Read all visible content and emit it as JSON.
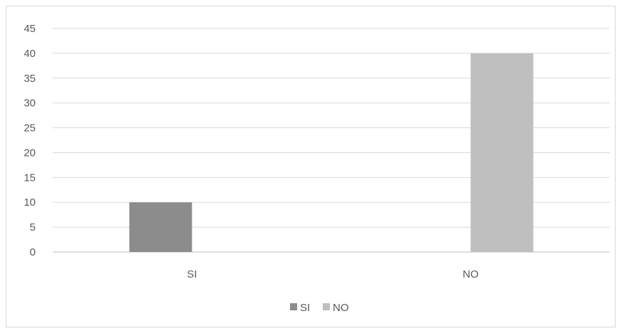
{
  "chart_data": {
    "type": "bar",
    "categories": [
      "SI",
      "NO"
    ],
    "series": [
      {
        "name": "SI",
        "values": [
          10,
          null
        ],
        "color": "#8c8c8c"
      },
      {
        "name": "NO",
        "values": [
          null,
          40
        ],
        "color": "#bfbfbf"
      }
    ],
    "title": "",
    "xlabel": "",
    "ylabel": "",
    "ylim": [
      0,
      45
    ],
    "yticks": [
      "0",
      "5",
      "10",
      "15",
      "20",
      "25",
      "30",
      "35",
      "40",
      "45"
    ],
    "grid": true,
    "legend_position": "bottom"
  }
}
